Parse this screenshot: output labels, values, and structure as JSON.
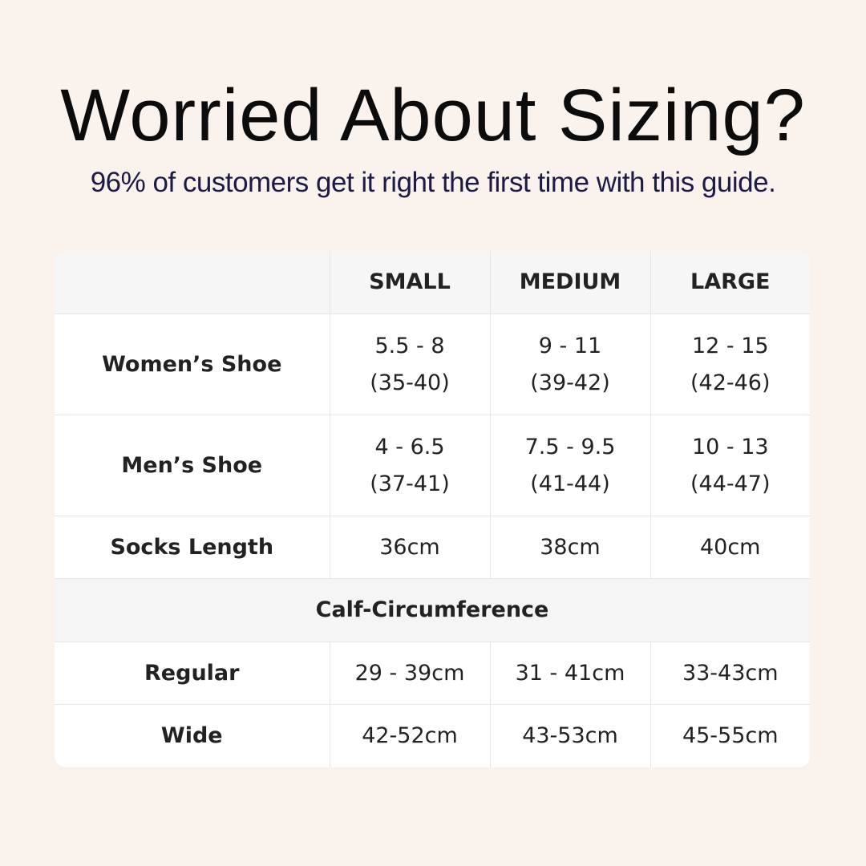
{
  "header": {
    "title": "Worried About Sizing?",
    "subtitle": "96% of customers get it right the first time with this guide."
  },
  "table": {
    "columns": [
      "SMALL",
      "MEDIUM",
      "LARGE"
    ],
    "rows": [
      {
        "label": "Women’s Shoe",
        "cells": [
          [
            "5.5 - 8",
            "(35-40)"
          ],
          [
            "9 - 11",
            "(39-42)"
          ],
          [
            "12 - 15",
            "(42-46)"
          ]
        ]
      },
      {
        "label": "Men’s Shoe",
        "cells": [
          [
            "4 - 6.5",
            "(37-41)"
          ],
          [
            "7.5 - 9.5",
            "(41-44)"
          ],
          [
            "10 - 13",
            "(44-47)"
          ]
        ]
      },
      {
        "label": "Socks Length",
        "cells": [
          [
            "36cm"
          ],
          [
            "38cm"
          ],
          [
            "40cm"
          ]
        ]
      }
    ],
    "section": "Calf-Circumference",
    "section_rows": [
      {
        "label": "Regular",
        "cells": [
          [
            "29 - 39cm"
          ],
          [
            "31 - 41cm"
          ],
          [
            "33-43cm"
          ]
        ]
      },
      {
        "label": "Wide",
        "cells": [
          [
            "42-52cm"
          ],
          [
            "43-53cm"
          ],
          [
            "45-55cm"
          ]
        ]
      }
    ]
  }
}
